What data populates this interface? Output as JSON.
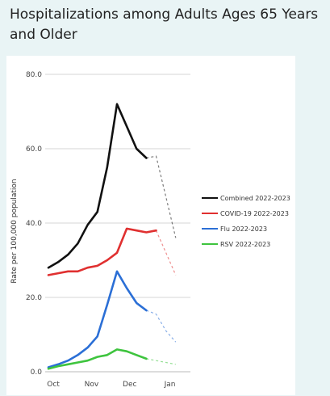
{
  "page": {
    "title": "Hospitalizations among Adults Ages 65 Years and Older"
  },
  "chart_data": {
    "type": "line",
    "title": "Hospitalizations among Adults Ages 65 Years and Older",
    "xlabel": "",
    "ylabel": "Rate per 100,000 population",
    "ylim": [
      0,
      80
    ],
    "yticks": [
      "0.0",
      "20.0",
      "40.0",
      "60.0",
      "80.0"
    ],
    "xtick_labels": [
      "Oct",
      "Nov",
      "Dec",
      "Jan"
    ],
    "x_range": [
      0,
      14.5
    ],
    "xtick_positions": [
      0.5,
      4.4,
      8.3,
      12.4
    ],
    "grid": true,
    "legend_position": "right",
    "x": [
      0,
      1,
      2,
      3,
      4,
      5,
      6,
      7,
      8,
      9,
      10,
      11,
      12,
      13
    ],
    "series": [
      {
        "name": "Combined 2022-2023",
        "color": "#111111",
        "values": [
          28,
          29.5,
          31.5,
          34.5,
          39.5,
          43,
          55,
          72,
          66,
          60,
          57.5,
          null,
          null,
          null
        ],
        "projected": [
          null,
          null,
          null,
          null,
          null,
          null,
          null,
          null,
          null,
          null,
          57.5,
          58,
          47,
          36
        ]
      },
      {
        "name": "COVID-19 2022-2023",
        "color": "#e03030",
        "values": [
          26,
          26.5,
          27,
          27,
          28,
          28.5,
          30,
          32,
          38.5,
          38,
          37.5,
          38,
          null,
          null
        ],
        "projected": [
          null,
          null,
          null,
          null,
          null,
          null,
          null,
          null,
          null,
          null,
          null,
          38,
          32,
          26
        ]
      },
      {
        "name": "Flu 2022-2023",
        "color": "#2b6fd6",
        "values": [
          1.2,
          2,
          3,
          4.5,
          6.5,
          9.5,
          18,
          27,
          22.5,
          18.5,
          16.5,
          null,
          null,
          null
        ],
        "projected": [
          null,
          null,
          null,
          null,
          null,
          null,
          null,
          null,
          null,
          null,
          16.5,
          15.5,
          11,
          8
        ]
      },
      {
        "name": "RSV 2022-2023",
        "color": "#3ec43e",
        "values": [
          0.8,
          1.5,
          2,
          2.5,
          3,
          4,
          4.5,
          6,
          5.5,
          4.5,
          3.5,
          null,
          null,
          null
        ],
        "projected": [
          null,
          null,
          null,
          null,
          null,
          null,
          null,
          null,
          null,
          null,
          3.5,
          3,
          2.5,
          2
        ]
      }
    ]
  }
}
